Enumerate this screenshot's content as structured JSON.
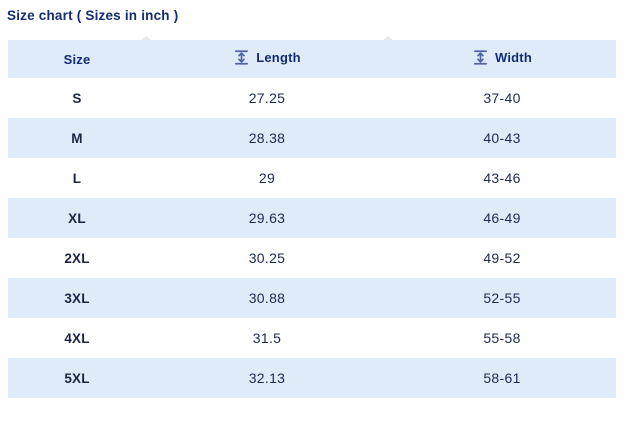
{
  "title": "Size chart ( Sizes in inch )",
  "colors": {
    "heading_text": "#132c74",
    "body_text": "#1e2a4e",
    "row_alt_bg": "#e0ebf9",
    "icon": "#4f63a7",
    "background": "#ffffff"
  },
  "table": {
    "columns": [
      {
        "label": "Size",
        "icon": ""
      },
      {
        "label": "Length",
        "icon": "vertical-measure-icon"
      },
      {
        "label": "Width",
        "icon": "vertical-measure-icon"
      }
    ],
    "rows": [
      {
        "size": "S",
        "length": "27.25",
        "width": "37-40"
      },
      {
        "size": "M",
        "length": "28.38",
        "width": "40-43"
      },
      {
        "size": "L",
        "length": "29",
        "width": "43-46"
      },
      {
        "size": "XL",
        "length": "29.63",
        "width": "46-49"
      },
      {
        "size": "2XL",
        "length": "30.25",
        "width": "49-52"
      },
      {
        "size": "3XL",
        "length": "30.88",
        "width": "52-55"
      },
      {
        "size": "4XL",
        "length": "31.5",
        "width": "55-58"
      },
      {
        "size": "5XL",
        "length": "32.13",
        "width": "58-61"
      }
    ]
  }
}
